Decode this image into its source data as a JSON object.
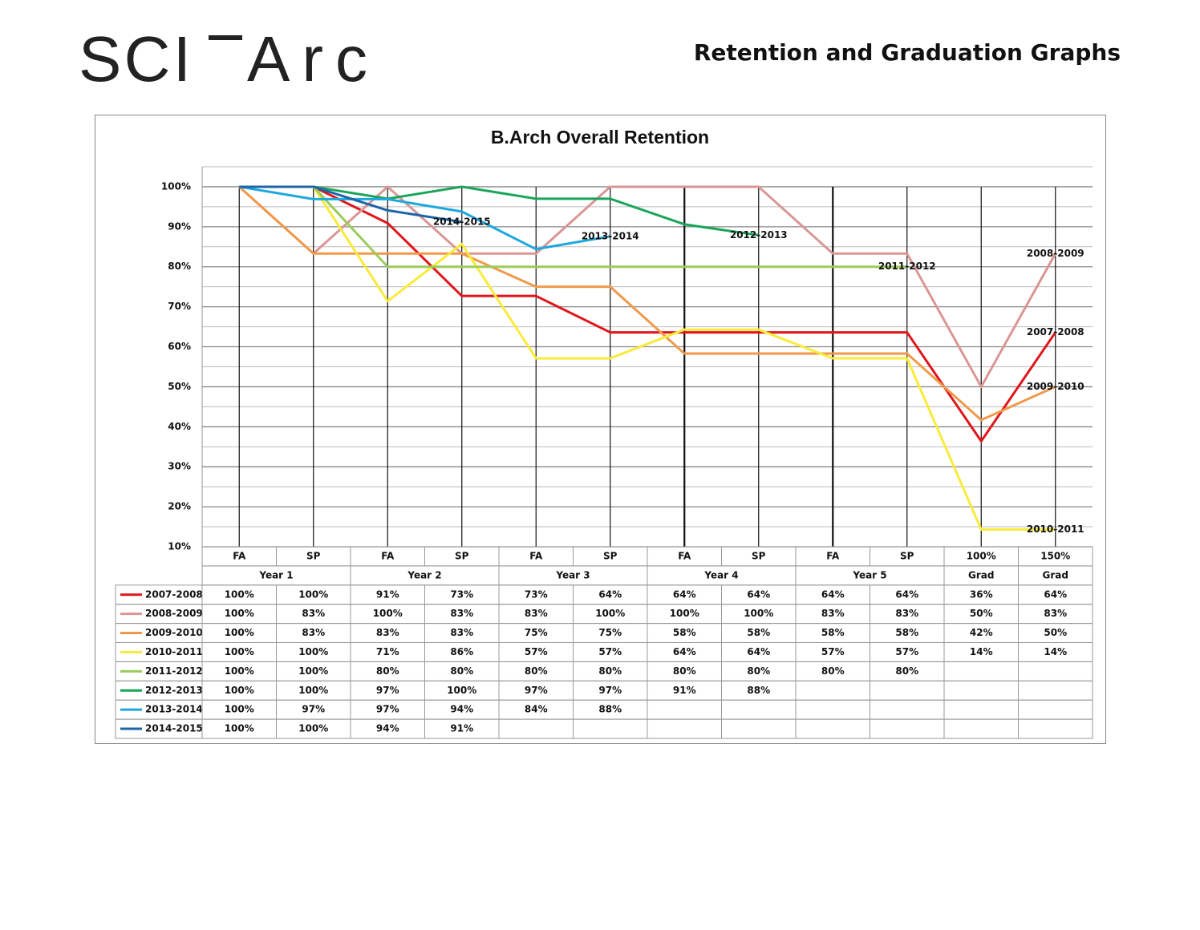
{
  "header": {
    "logo": [
      "SCI",
      "Arc"
    ],
    "title": "Retention and Graduation Graphs"
  },
  "chart_data": {
    "type": "line",
    "title": "B.Arch Overall Retention",
    "categories": [
      "FA",
      "SP",
      "FA",
      "SP",
      "FA",
      "SP",
      "FA",
      "SP",
      "FA",
      "SP",
      "100%",
      "150%"
    ],
    "category_groups": [
      "Year 1",
      null,
      "Year 2",
      null,
      "Year 3",
      null,
      "Year 4",
      null,
      "Year 5",
      null,
      "Grad",
      "Grad"
    ],
    "ylim": [
      10,
      105
    ],
    "yticks": [
      {
        "value": 10,
        "label": "10%"
      },
      {
        "value": 20,
        "label": "20%"
      },
      {
        "value": 30,
        "label": "30%"
      },
      {
        "value": 40,
        "label": "40%"
      },
      {
        "value": 50,
        "label": "50%"
      },
      {
        "value": 60,
        "label": "60%"
      },
      {
        "value": 70,
        "label": "70%"
      },
      {
        "value": 80,
        "label": "80%"
      },
      {
        "value": 90,
        "label": "90%"
      },
      {
        "value": 100,
        "label": "100%"
      }
    ],
    "minor_yticks": [
      15,
      25,
      35,
      45,
      55,
      65,
      75,
      85,
      95,
      105
    ],
    "grid": true,
    "series": [
      {
        "name": "2007-2008",
        "color": "#e0161b",
        "values": [
          100,
          100,
          90.9,
          72.7,
          72.7,
          63.6,
          63.6,
          63.6,
          63.6,
          63.6,
          36.4,
          63.6
        ],
        "value_labels": [
          "100%",
          "100%",
          "91%",
          "73%",
          "73%",
          "64%",
          "64%",
          "64%",
          "64%",
          "64%",
          "36%",
          "64%"
        ]
      },
      {
        "name": "2008-2009",
        "color": "#d99694",
        "values": [
          100,
          83.3,
          100,
          83.3,
          83.3,
          100,
          100,
          100,
          83.3,
          83.3,
          50,
          83.3
        ],
        "value_labels": [
          "100%",
          "83%",
          "100%",
          "83%",
          "83%",
          "100%",
          "100%",
          "100%",
          "83%",
          "83%",
          "50%",
          "83%"
        ]
      },
      {
        "name": "2009-2010",
        "color": "#f0994a",
        "values": [
          100,
          83.3,
          83.3,
          83.3,
          75,
          75,
          58.3,
          58.3,
          58.3,
          58.3,
          41.7,
          50
        ],
        "value_labels": [
          "100%",
          "83%",
          "83%",
          "83%",
          "75%",
          "75%",
          "58%",
          "58%",
          "58%",
          "58%",
          "42%",
          "50%"
        ]
      },
      {
        "name": "2010-2011",
        "color": "#f9eb3a",
        "values": [
          100,
          100,
          71.4,
          85.7,
          57.1,
          57.1,
          64.3,
          64.3,
          57.1,
          57.1,
          14.3,
          14.3
        ],
        "value_labels": [
          "100%",
          "100%",
          "71%",
          "86%",
          "57%",
          "57%",
          "64%",
          "64%",
          "57%",
          "57%",
          "14%",
          "14%"
        ]
      },
      {
        "name": "2011-2012",
        "color": "#9bcc5a",
        "values": [
          100,
          100,
          80,
          80,
          80,
          80,
          80,
          80,
          80,
          80,
          null,
          null
        ],
        "value_labels": [
          "100%",
          "100%",
          "80%",
          "80%",
          "80%",
          "80%",
          "80%",
          "80%",
          "80%",
          "80%",
          null,
          null
        ]
      },
      {
        "name": "2012-2013",
        "color": "#1aa55a",
        "values": [
          100,
          100,
          97,
          100,
          97,
          97,
          90.6,
          87.9,
          null,
          null,
          null,
          null
        ],
        "value_labels": [
          "100%",
          "100%",
          "97%",
          "100%",
          "97%",
          "97%",
          "91%",
          "88%",
          null,
          null,
          null,
          null
        ]
      },
      {
        "name": "2013-2014",
        "color": "#1ea8de",
        "values": [
          100,
          96.9,
          96.9,
          93.8,
          84.4,
          87.6,
          null,
          null,
          null,
          null,
          null,
          null
        ],
        "value_labels": [
          "100%",
          "97%",
          "97%",
          "94%",
          "84%",
          "88%",
          null,
          null,
          null,
          null,
          null,
          null
        ]
      },
      {
        "name": "2014-2015",
        "color": "#1d65a8",
        "values": [
          100,
          100,
          94.1,
          91.2,
          null,
          null,
          null,
          null,
          null,
          null,
          null,
          null
        ],
        "value_labels": [
          "100%",
          "100%",
          "94%",
          "91%",
          null,
          null,
          null,
          null,
          null,
          null,
          null,
          null
        ]
      }
    ]
  }
}
